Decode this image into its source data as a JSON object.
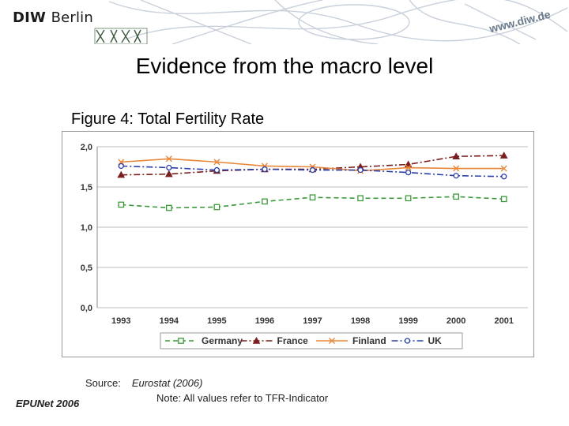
{
  "header": {
    "brand_bold": "DIW",
    "brand_light": "Berlin",
    "url": "www.diw.de"
  },
  "slide": {
    "title": "Evidence from the macro level",
    "figure_title": "Figure 4: Total Fertility Rate"
  },
  "footer": {
    "source_label": "Source:",
    "source_text": "Eurostat (2006)",
    "note": "Note: All values refer to TFR-Indicator",
    "credit": "EPUNet 2006"
  },
  "chart_data": {
    "type": "line",
    "title": "",
    "xlabel": "",
    "ylabel": "",
    "categories": [
      "1993",
      "1994",
      "1995",
      "1996",
      "1997",
      "1998",
      "1999",
      "2000",
      "2001"
    ],
    "ylim": [
      0,
      2.0
    ],
    "yticks": [
      "0,0",
      "0,5",
      "1,0",
      "1,5",
      "2,0"
    ],
    "grid": true,
    "legend_position": "bottom",
    "series": [
      {
        "name": "Germany",
        "values": [
          1.28,
          1.24,
          1.25,
          1.32,
          1.37,
          1.36,
          1.36,
          1.38,
          1.35
        ],
        "color": "#3a9a3a",
        "marker": "square",
        "dash": "6,4"
      },
      {
        "name": "France",
        "values": [
          1.65,
          1.66,
          1.7,
          1.72,
          1.72,
          1.75,
          1.78,
          1.88,
          1.89
        ],
        "color": "#7a1f1f",
        "marker": "triangle",
        "dash": "8,3,2,3"
      },
      {
        "name": "Finland",
        "values": [
          1.81,
          1.85,
          1.81,
          1.76,
          1.75,
          1.7,
          1.74,
          1.73,
          1.73
        ],
        "color": "#e8873a",
        "marker": "x",
        "dash": ""
      },
      {
        "name": "UK",
        "values": [
          1.76,
          1.74,
          1.71,
          1.72,
          1.71,
          1.71,
          1.68,
          1.64,
          1.63
        ],
        "color": "#2b3fa8",
        "marker": "circle",
        "dash": "8,3,2,3"
      }
    ]
  }
}
